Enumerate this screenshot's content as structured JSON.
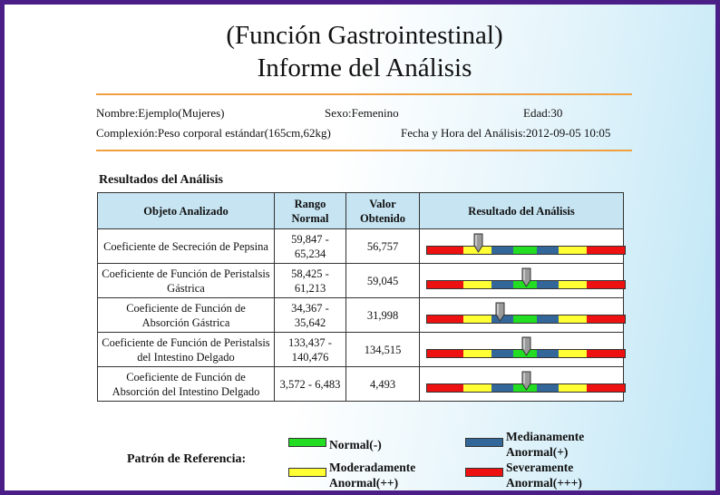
{
  "header": {
    "title_line1": "(Función Gastrointestinal)",
    "title_line2": "Informe del Análisis"
  },
  "patient": {
    "name": "Nombre:Ejemplo(Mujeres)",
    "sex": "Sexo:Femenino",
    "age": "Edad:30",
    "build": "Complexión:Peso corporal estándar(165cm,62kg)",
    "datetime": "Fecha y Hora del Análisis:2012-09-05 10:05"
  },
  "results": {
    "section_title": "Resultados del Análisis",
    "columns": [
      "Objeto Analizado",
      "Rango Normal",
      "Valor Obtenido",
      "Resultado del Análisis"
    ],
    "rows": [
      {
        "item": "Coeficiente de Secreción de Pepsina",
        "range": "59,847 - 65,234",
        "value": "56,757",
        "level": 0.26
      },
      {
        "item": "Coeficiente de Función de Peristalsis Gástrica",
        "range": "58,425 - 61,213",
        "value": "59,045",
        "level": 0.5
      },
      {
        "item": "Coeficiente de Función de Absorción Gástrica",
        "range": "34,367 - 35,642",
        "value": "31,998",
        "level": 0.37
      },
      {
        "item": "Coeficiente de Función de Peristalsis del Intestino Delgado",
        "range": "133,437 - 140,476",
        "value": "134,515",
        "level": 0.5
      },
      {
        "item": "Coeficiente de Función de Absorción del Intestino Delgado",
        "range": "3,572 - 6,483",
        "value": "4,493",
        "level": 0.5
      }
    ]
  },
  "scale_colors": {
    "severe": "#ee1111",
    "moderate": "#ffff33",
    "medium": "#336699",
    "normal": "#22dd22"
  },
  "legend": {
    "title": "Patrón de Referencia:",
    "normal": "Normal(-)",
    "medium_line1": "Medianamente",
    "medium_line2": "Anormal(+)",
    "moderate_line1": "Moderadamente",
    "moderate_line2": "Anormal(++)",
    "severe_line1": "Severamente",
    "severe_line2": "Anormal(+++)"
  }
}
